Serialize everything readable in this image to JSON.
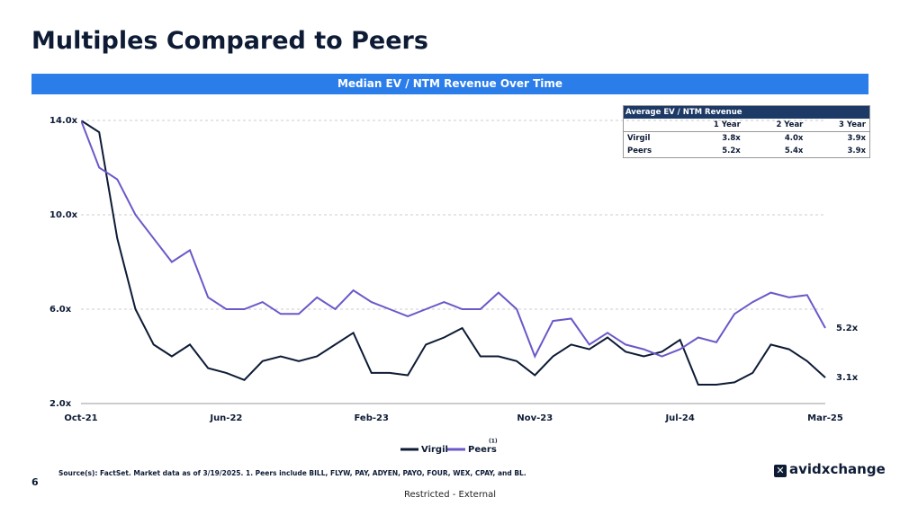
{
  "header": {
    "title": "Multiples Compared to Peers"
  },
  "chart_data": {
    "type": "line",
    "title": "Median EV / NTM Revenue Over Time",
    "categories": [
      "Oct-21",
      null,
      null,
      null,
      null,
      null,
      null,
      null,
      "Jun-22",
      null,
      null,
      null,
      null,
      null,
      null,
      null,
      "Feb-23",
      null,
      null,
      null,
      null,
      null,
      null,
      null,
      null,
      "Nov-23",
      null,
      null,
      null,
      null,
      null,
      null,
      null,
      "Jul-24",
      null,
      null,
      null,
      null,
      null,
      null,
      null,
      "Mar-25"
    ],
    "ylim": [
      2,
      14
    ],
    "yticks": [
      {
        "value": 2,
        "label": "2.0x"
      },
      {
        "value": 6,
        "label": "6.0x"
      },
      {
        "value": 10,
        "label": "10.0x"
      },
      {
        "value": 14,
        "label": "14.0x"
      }
    ],
    "grid": true,
    "series": [
      {
        "name": "Virgil",
        "color": "#0d1b35",
        "values": [
          14.0,
          13.5,
          9.0,
          6.0,
          4.5,
          4.0,
          4.5,
          3.5,
          3.3,
          3.0,
          3.8,
          4.0,
          3.8,
          4.0,
          4.5,
          5.0,
          3.3,
          3.3,
          3.2,
          4.5,
          4.8,
          5.2,
          4.0,
          4.0,
          3.8,
          3.2,
          4.0,
          4.5,
          4.3,
          4.8,
          4.2,
          4.0,
          4.2,
          4.7,
          2.8,
          2.8,
          2.9,
          3.3,
          4.5,
          4.3,
          3.8,
          3.1
        ],
        "value_labels": [
          null,
          null,
          null,
          null,
          null,
          null,
          null,
          null,
          null,
          null,
          null,
          null,
          null,
          null,
          null,
          null,
          null,
          null,
          null,
          null,
          null,
          null,
          null,
          null,
          null,
          null,
          null,
          null,
          null,
          null,
          null,
          null,
          null,
          null,
          null,
          null,
          null,
          null,
          null,
          null,
          null,
          "3.1x"
        ]
      },
      {
        "name": "Peers",
        "color": "#6b58c9",
        "footnote_marker": "(1)",
        "values": [
          14.0,
          12.0,
          11.5,
          10.0,
          9.0,
          8.0,
          8.5,
          6.5,
          6.0,
          6.0,
          6.3,
          5.8,
          5.8,
          6.5,
          6.0,
          6.8,
          6.3,
          6.0,
          5.7,
          6.0,
          6.3,
          6.0,
          6.0,
          6.7,
          6.0,
          4.0,
          5.5,
          5.6,
          4.5,
          5.0,
          4.5,
          4.3,
          4.0,
          4.3,
          4.8,
          4.6,
          5.8,
          6.3,
          6.7,
          6.5,
          6.6,
          5.2
        ],
        "value_labels": [
          null,
          null,
          null,
          null,
          null,
          null,
          null,
          null,
          null,
          null,
          null,
          null,
          null,
          null,
          null,
          null,
          null,
          null,
          null,
          null,
          null,
          null,
          null,
          null,
          null,
          null,
          null,
          null,
          null,
          null,
          null,
          null,
          null,
          null,
          null,
          null,
          null,
          null,
          null,
          null,
          null,
          "5.2x"
        ]
      }
    ],
    "table": {
      "title": "Average EV / NTM Revenue",
      "columns": [
        "1 Year",
        "2 Year",
        "3 Year"
      ],
      "rows": [
        {
          "name": "Virgil",
          "cells": [
            "3.8x",
            "4.0x",
            "3.9x"
          ]
        },
        {
          "name": "Peers",
          "cells": [
            "5.2x",
            "5.4x",
            "3.9x"
          ]
        }
      ]
    }
  },
  "footer": {
    "source": "Source(s): FactSet. Market data as of 3/19/2025. 1. Peers include BILL, FLYW, PAY, ADYEN, PAYO, FOUR, WEX, CPAY, and BL.",
    "page_number": "6",
    "logo": "avidxchange",
    "classification": "Restricted - External"
  }
}
